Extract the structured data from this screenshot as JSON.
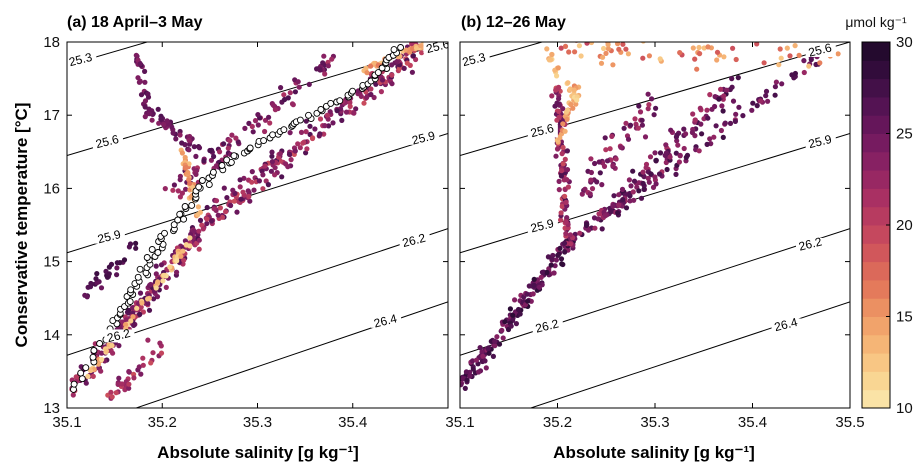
{
  "chart_data": [
    {
      "type": "scatter",
      "title": "(a) 18 April–3 May",
      "xlabel": "Absolute salinity [g kg⁻¹]",
      "ylabel": "Conservative temperature [°C]",
      "xlim": [
        35.1,
        35.5
      ],
      "ylim": [
        13,
        18
      ],
      "xticks": [
        "35.1",
        "35.2",
        "35.3",
        "35.4"
      ],
      "yticks": [
        "13",
        "14",
        "15",
        "16",
        "17",
        "18"
      ],
      "isopycnals": [
        {
          "label": "25.3",
          "points": [
            [
              35.1,
              17.68
            ],
            [
              35.5,
              19.2
            ]
          ]
        },
        {
          "label": "25.6",
          "points": [
            [
              35.1,
              16.45
            ],
            [
              35.5,
              18.0
            ]
          ]
        },
        {
          "label": "25.9",
          "points": [
            [
              35.1,
              15.12
            ],
            [
              35.5,
              16.75
            ]
          ]
        },
        {
          "label": "26.2",
          "points": [
            [
              35.1,
              13.72
            ],
            [
              35.5,
              15.45
            ]
          ]
        },
        {
          "label": "26.4",
          "points": [
            [
              35.15,
              12.9
            ],
            [
              35.5,
              14.45
            ]
          ]
        }
      ],
      "isopycnal_labels": [
        {
          "text": "25.3",
          "s": 35.115,
          "t": 17.72
        },
        {
          "text": "25.6",
          "s": 35.143,
          "t": 16.6
        },
        {
          "text": "25.6",
          "s": 35.49,
          "t": 17.9
        },
        {
          "text": "25.9",
          "s": 35.145,
          "t": 15.3
        },
        {
          "text": "25.9",
          "s": 35.475,
          "t": 16.65
        },
        {
          "text": "26.2",
          "s": 35.155,
          "t": 13.95
        },
        {
          "text": "26.2",
          "s": 35.465,
          "t": 15.25
        },
        {
          "text": "26.4",
          "s": 35.435,
          "t": 14.15
        }
      ],
      "series": [
        {
          "name": "",
          "color_scale": "oxygen",
          "branches": [
            {
              "from": [
                35.105,
                13.22
              ],
              "to": [
                35.25,
                15.6
              ],
              "spread": 0.09,
              "oxy": [
                20,
                27
              ],
              "n": 220
            },
            {
              "from": [
                35.25,
                15.6
              ],
              "to": [
                35.47,
                17.95
              ],
              "spread": 0.11,
              "oxy": [
                19,
                27
              ],
              "n": 230
            },
            {
              "from": [
                35.21,
                15.9
              ],
              "to": [
                35.38,
                17.8
              ],
              "spread": 0.1,
              "oxy": [
                21,
                27
              ],
              "n": 90
            },
            {
              "from": [
                35.18,
                17.1
              ],
              "to": [
                35.26,
                16.3
              ],
              "spread": 0.07,
              "oxy": [
                23,
                27
              ],
              "n": 55
            },
            {
              "from": [
                35.175,
                17.9
              ],
              "to": [
                35.185,
                17.0
              ],
              "spread": 0.05,
              "oxy": [
                23,
                27
              ],
              "n": 30
            },
            {
              "from": [
                35.22,
                16.5
              ],
              "to": [
                35.24,
                15.6
              ],
              "spread": 0.04,
              "oxy": [
                12,
                17
              ],
              "n": 40
            },
            {
              "from": [
                35.12,
                13.4
              ],
              "to": [
                35.23,
                15.3
              ],
              "spread": 0.03,
              "oxy": [
                11,
                15
              ],
              "n": 60
            },
            {
              "from": [
                35.41,
                17.6
              ],
              "to": [
                35.48,
                18.0
              ],
              "spread": 0.03,
              "oxy": [
                12,
                17
              ],
              "n": 35
            },
            {
              "from": [
                35.12,
                14.55
              ],
              "to": [
                35.17,
                15.2
              ],
              "spread": 0.06,
              "oxy": [
                25,
                28
              ],
              "n": 30
            },
            {
              "from": [
                35.14,
                13.1
              ],
              "to": [
                35.2,
                13.9
              ],
              "spread": 0.08,
              "oxy": [
                19,
                25
              ],
              "n": 35
            }
          ]
        },
        {
          "name": "",
          "marker": "open-circle",
          "branches": [
            {
              "from": [
                35.105,
                13.25
              ],
              "to": [
                35.15,
                14.15
              ],
              "spread": 0.008,
              "n": 12
            },
            {
              "from": [
                35.15,
                14.15
              ],
              "to": [
                35.2,
                15.3
              ],
              "spread": 0.01,
              "n": 30
            },
            {
              "from": [
                35.2,
                15.3
              ],
              "to": [
                35.26,
                16.3
              ],
              "spread": 0.01,
              "n": 25
            },
            {
              "from": [
                35.26,
                16.3
              ],
              "to": [
                35.42,
                17.45
              ],
              "spread": 0.008,
              "n": 40
            },
            {
              "from": [
                35.42,
                17.45
              ],
              "to": [
                35.45,
                17.95
              ],
              "spread": 0.008,
              "n": 15
            }
          ]
        }
      ]
    },
    {
      "type": "scatter",
      "title": "(b) 12–26 May",
      "xlabel": "Absolute salinity [g kg⁻¹]",
      "xlim": [
        35.1,
        35.5
      ],
      "ylim": [
        13,
        18
      ],
      "xticks": [
        "35.1",
        "35.2",
        "35.3",
        "35.4",
        "35.5"
      ],
      "isopycnals": [
        {
          "label": "25.3",
          "points": [
            [
              35.1,
              17.68
            ],
            [
              35.5,
              19.2
            ]
          ]
        },
        {
          "label": "25.6",
          "points": [
            [
              35.1,
              16.45
            ],
            [
              35.5,
              18.0
            ]
          ]
        },
        {
          "label": "25.9",
          "points": [
            [
              35.1,
              15.12
            ],
            [
              35.5,
              16.75
            ]
          ]
        },
        {
          "label": "26.2",
          "points": [
            [
              35.1,
              13.72
            ],
            [
              35.5,
              15.45
            ]
          ]
        },
        {
          "label": "26.4",
          "points": [
            [
              35.15,
              12.9
            ],
            [
              35.5,
              14.45
            ]
          ]
        }
      ],
      "isopycnal_labels": [
        {
          "text": "25.3",
          "s": 35.115,
          "t": 17.72
        },
        {
          "text": "25.6",
          "s": 35.185,
          "t": 16.75
        },
        {
          "text": "25.6",
          "s": 35.47,
          "t": 17.85
        },
        {
          "text": "25.9",
          "s": 35.185,
          "t": 15.45
        },
        {
          "text": "25.9",
          "s": 35.47,
          "t": 16.6
        },
        {
          "text": "26.2",
          "s": 35.19,
          "t": 14.08
        },
        {
          "text": "26.2",
          "s": 35.46,
          "t": 15.2
        },
        {
          "text": "26.4",
          "s": 35.435,
          "t": 14.1
        }
      ],
      "series": [
        {
          "name": "",
          "color_scale": "oxygen",
          "branches": [
            {
              "from": [
                35.1,
                13.3
              ],
              "to": [
                35.22,
                15.4
              ],
              "spread": 0.07,
              "oxy": [
                23,
                29
              ],
              "n": 170
            },
            {
              "from": [
                35.21,
                15.2
              ],
              "to": [
                35.2,
                17.4
              ],
              "spread": 0.05,
              "oxy": [
                19,
                27
              ],
              "n": 110
            },
            {
              "from": [
                35.22,
                15.3
              ],
              "to": [
                35.38,
                17.4
              ],
              "spread": 0.1,
              "oxy": [
                21,
                28
              ],
              "n": 130
            },
            {
              "from": [
                35.25,
                15.6
              ],
              "to": [
                35.47,
                17.85
              ],
              "spread": 0.06,
              "oxy": [
                22,
                28
              ],
              "n": 90
            },
            {
              "from": [
                35.2,
                17.95
              ],
              "to": [
                35.48,
                17.85
              ],
              "spread": 0.15,
              "oxy": [
                12,
                20
              ],
              "n": 70
            },
            {
              "from": [
                35.2,
                16.6
              ],
              "to": [
                35.22,
                17.4
              ],
              "spread": 0.05,
              "oxy": [
                12,
                16
              ],
              "n": 35
            },
            {
              "from": [
                35.19,
                17.9
              ],
              "to": [
                35.22,
                17.2
              ],
              "spread": 0.05,
              "oxy": [
                11,
                15
              ],
              "n": 20
            },
            {
              "from": [
                35.23,
                16.0
              ],
              "to": [
                35.3,
                17.2
              ],
              "spread": 0.15,
              "oxy": [
                21,
                27
              ],
              "n": 60
            }
          ]
        }
      ]
    }
  ],
  "colorbar": {
    "title": "μmol kg⁻¹",
    "min": 10,
    "max": 30,
    "ticks": [
      "10",
      "15",
      "20",
      "25",
      "30"
    ],
    "levels": 20,
    "colormap": [
      "#fbeab0",
      "#f9d490",
      "#f6b878",
      "#ef9a65",
      "#e3775a",
      "#d35a5a",
      "#bf405f",
      "#a62e63",
      "#8a2263",
      "#6e185e",
      "#511252",
      "#350d3d",
      "#1c0828"
    ]
  }
}
